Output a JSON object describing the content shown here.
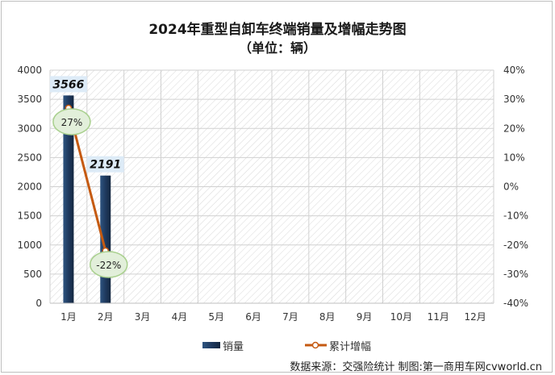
{
  "title": "2024年重型自卸车终端销量及增幅走势图",
  "subtitle": "（单位：辆）",
  "source": "数据来源：交强险统计 制图:第一商用车网cvworld.cn",
  "chart_data": {
    "type": "bar",
    "categories": [
      "1月",
      "2月",
      "3月",
      "4月",
      "5月",
      "6月",
      "7月",
      "8月",
      "9月",
      "10月",
      "11月",
      "12月"
    ],
    "series": [
      {
        "name": "销量",
        "kind": "bar",
        "axis": "left",
        "values": [
          3566,
          2191,
          null,
          null,
          null,
          null,
          null,
          null,
          null,
          null,
          null,
          null
        ],
        "labels": [
          "3566",
          "2191"
        ]
      },
      {
        "name": "累计增幅",
        "kind": "line",
        "axis": "right",
        "values": [
          27,
          -22,
          null,
          null,
          null,
          null,
          null,
          null,
          null,
          null,
          null,
          null
        ],
        "labels": [
          "27%",
          "-22%"
        ]
      }
    ],
    "ylim": [
      0,
      4000
    ],
    "yticks": [
      "0",
      "500",
      "1000",
      "1500",
      "2000",
      "2500",
      "3000",
      "3500",
      "4000"
    ],
    "y2lim": [
      -40,
      40
    ],
    "y2ticks": [
      "-40%",
      "-30%",
      "-20%",
      "-10%",
      "0%",
      "10%",
      "20%",
      "30%",
      "40%"
    ],
    "legend_position": "bottom",
    "colors": {
      "bar": "#1f3a5f",
      "line": "#c55a11",
      "grid": "#d0d0d0",
      "bubble_fill": "#e2efda",
      "bubble_stroke": "#a9d08e",
      "bar_label_bg": "#ddebf7"
    }
  }
}
